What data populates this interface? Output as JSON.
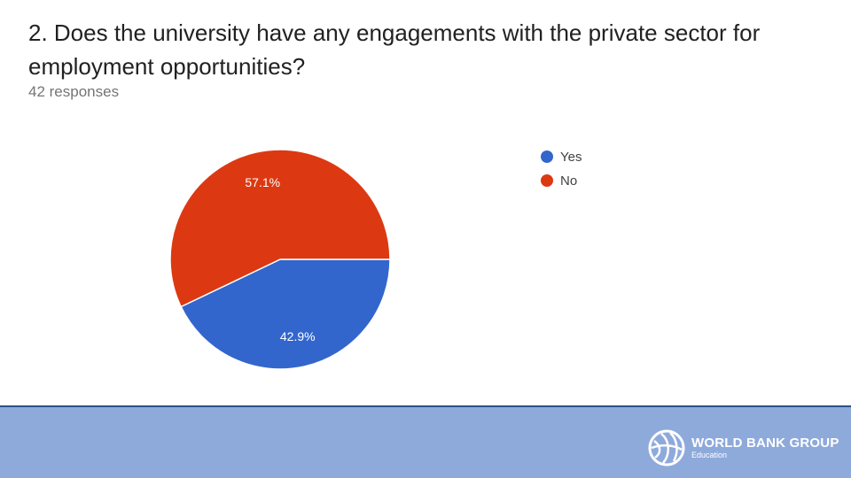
{
  "question": "2. Does the university have any engagements with the private sector for employment opportunities?",
  "responses_label": "42 responses",
  "chart_data": {
    "type": "pie",
    "categories": [
      "Yes",
      "No"
    ],
    "values": [
      42.9,
      57.1
    ],
    "labels": [
      "42.9%",
      "57.1%"
    ],
    "colors": [
      "#3366cc",
      "#dc3912"
    ],
    "legend_position": "right"
  },
  "logo": {
    "name": "WORLD BANK GROUP",
    "subtitle": "Education",
    "icon": "globe-icon"
  },
  "colors": {
    "footer_bg": "#8eaadb",
    "footer_border": "#2f4f86"
  }
}
